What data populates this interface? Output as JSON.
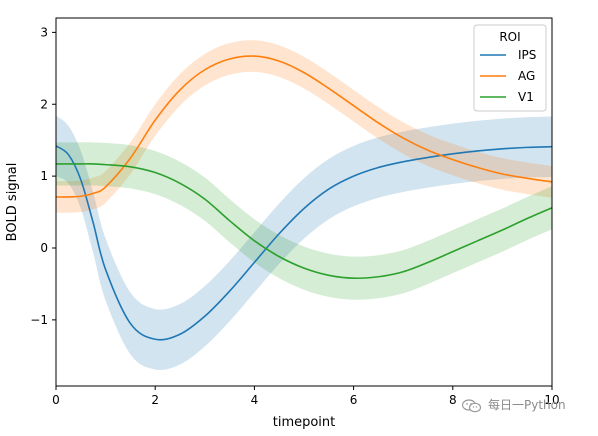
{
  "chart_data": {
    "type": "line",
    "xlabel": "timepoint",
    "ylabel": "BOLD signal",
    "xlim": [
      0,
      10
    ],
    "ylim": [
      -1.92,
      3.2
    ],
    "xticks": [
      0,
      2,
      4,
      6,
      8,
      10
    ],
    "yticks": [
      -1,
      0,
      1,
      2,
      3
    ],
    "grid": false,
    "legend": {
      "title": "ROI",
      "placement": "top-right"
    },
    "series": [
      {
        "name": "IPS",
        "color": "#1f77b4",
        "x": [
          0,
          0.25,
          0.5,
          0.75,
          1,
          1.5,
          2,
          2.5,
          3,
          3.5,
          4,
          4.5,
          5,
          5.5,
          6,
          6.5,
          7,
          7.5,
          8,
          8.5,
          9,
          9.5,
          10
        ],
        "values": [
          1.42,
          1.3,
          0.95,
          0.35,
          -0.3,
          -1.05,
          -1.27,
          -1.2,
          -0.95,
          -0.6,
          -0.2,
          0.2,
          0.55,
          0.82,
          1.0,
          1.12,
          1.2,
          1.26,
          1.31,
          1.35,
          1.38,
          1.4,
          1.41
        ],
        "band": [
          0.42,
          0.4,
          0.4,
          0.42,
          0.43,
          0.43,
          0.42,
          0.42,
          0.42,
          0.42,
          0.42,
          0.42,
          0.42,
          0.42,
          0.42,
          0.42,
          0.42,
          0.42,
          0.42,
          0.42,
          0.42,
          0.42,
          0.42
        ]
      },
      {
        "name": "AG",
        "color": "#ff7f0e",
        "x": [
          0,
          0.25,
          0.5,
          0.75,
          1,
          1.5,
          2,
          2.5,
          3,
          3.5,
          4,
          4.5,
          5,
          5.5,
          6,
          6.5,
          7,
          7.5,
          8,
          8.5,
          9,
          9.5,
          10
        ],
        "values": [
          0.71,
          0.71,
          0.72,
          0.76,
          0.85,
          1.25,
          1.78,
          2.2,
          2.48,
          2.63,
          2.67,
          2.6,
          2.44,
          2.22,
          1.98,
          1.74,
          1.53,
          1.36,
          1.23,
          1.12,
          1.03,
          0.97,
          0.92
        ],
        "band": [
          0.22,
          0.22,
          0.22,
          0.22,
          0.22,
          0.22,
          0.22,
          0.22,
          0.22,
          0.22,
          0.22,
          0.22,
          0.22,
          0.22,
          0.22,
          0.22,
          0.22,
          0.22,
          0.22,
          0.22,
          0.22,
          0.22,
          0.22
        ]
      },
      {
        "name": "V1",
        "color": "#2ca02c",
        "x": [
          0,
          0.25,
          0.5,
          0.75,
          1,
          1.5,
          2,
          2.5,
          3,
          3.5,
          4,
          4.5,
          5,
          5.5,
          6,
          6.5,
          7,
          7.5,
          8,
          8.5,
          9,
          9.5,
          10
        ],
        "values": [
          1.17,
          1.17,
          1.17,
          1.17,
          1.16,
          1.13,
          1.05,
          0.9,
          0.68,
          0.38,
          0.1,
          -0.12,
          -0.28,
          -0.38,
          -0.42,
          -0.4,
          -0.33,
          -0.2,
          -0.05,
          0.1,
          0.25,
          0.41,
          0.56
        ],
        "band": [
          0.3,
          0.3,
          0.3,
          0.3,
          0.3,
          0.3,
          0.3,
          0.3,
          0.3,
          0.3,
          0.3,
          0.3,
          0.3,
          0.3,
          0.3,
          0.3,
          0.3,
          0.3,
          0.3,
          0.3,
          0.3,
          0.3,
          0.3
        ]
      }
    ]
  },
  "watermark": {
    "text": "每日一Python",
    "icon": "wechat-icon"
  }
}
